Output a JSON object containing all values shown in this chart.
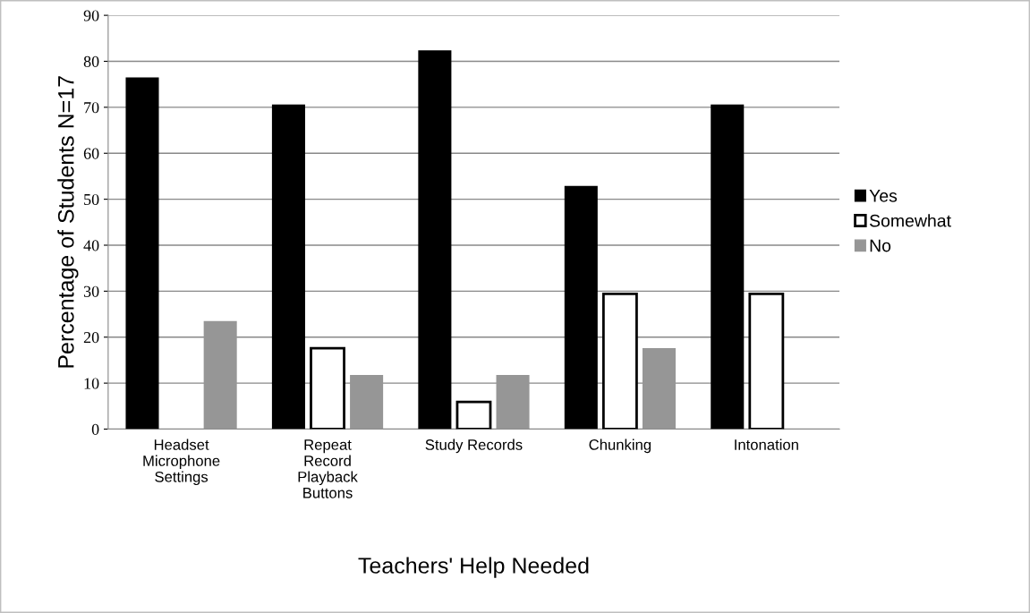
{
  "chart_data": {
    "type": "bar",
    "categories": [
      "Headset\nMicrophone\nSettings",
      "Repeat\nRecord\nPlayback\nButtons",
      "Study Records",
      "Chunking",
      "Intonation"
    ],
    "series": [
      {
        "name": "Yes",
        "color": "#000000",
        "values": [
          76.5,
          70.6,
          82.4,
          52.9,
          70.6
        ]
      },
      {
        "name": "Somewhat",
        "color": "#ffffff",
        "values": [
          0,
          17.6,
          5.9,
          29.4,
          29.4
        ]
      },
      {
        "name": "No",
        "color": "#969696",
        "values": [
          23.5,
          11.8,
          11.8,
          17.6,
          0
        ]
      }
    ],
    "xlabel": "Teachers' Help Needed",
    "ylabel": "Percentage of Students N=17",
    "ylim": [
      0,
      90
    ],
    "yticks": [
      0,
      10,
      20,
      30,
      40,
      50,
      60,
      70,
      80,
      90
    ],
    "grid": "y",
    "legend": "right"
  }
}
